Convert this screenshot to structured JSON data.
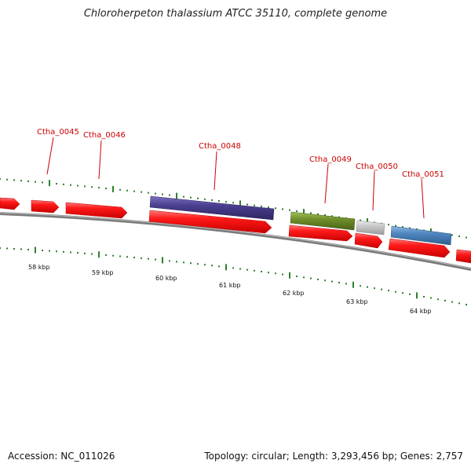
{
  "title": "Chloroherpeton thalassium ATCC 35110, complete genome",
  "footer": {
    "accession": "Accession: NC_011026",
    "summary": "Topology: circular; Length: 3,293,456 bp; Genes: 2,757"
  },
  "colors": {
    "cds": "#ff1a1a",
    "gene_label": "#cc0000",
    "tick": "#2f7f2f",
    "backbone": "#7a7a7a",
    "purple": "#4a3f8f",
    "olive": "#6f8f2a",
    "grey": "#c8c8c8",
    "blue": "#4f86bf"
  },
  "scale_labels": [
    "58 kbp",
    "59 kbp",
    "60 kbp",
    "61 kbp",
    "62 kbp",
    "63 kbp",
    "64 kbp"
  ],
  "gene_labels": [
    "Ctha_0045",
    "Ctha_0046",
    "Ctha_0048",
    "Ctha_0049",
    "Ctha_0050",
    "Ctha_0051"
  ]
}
